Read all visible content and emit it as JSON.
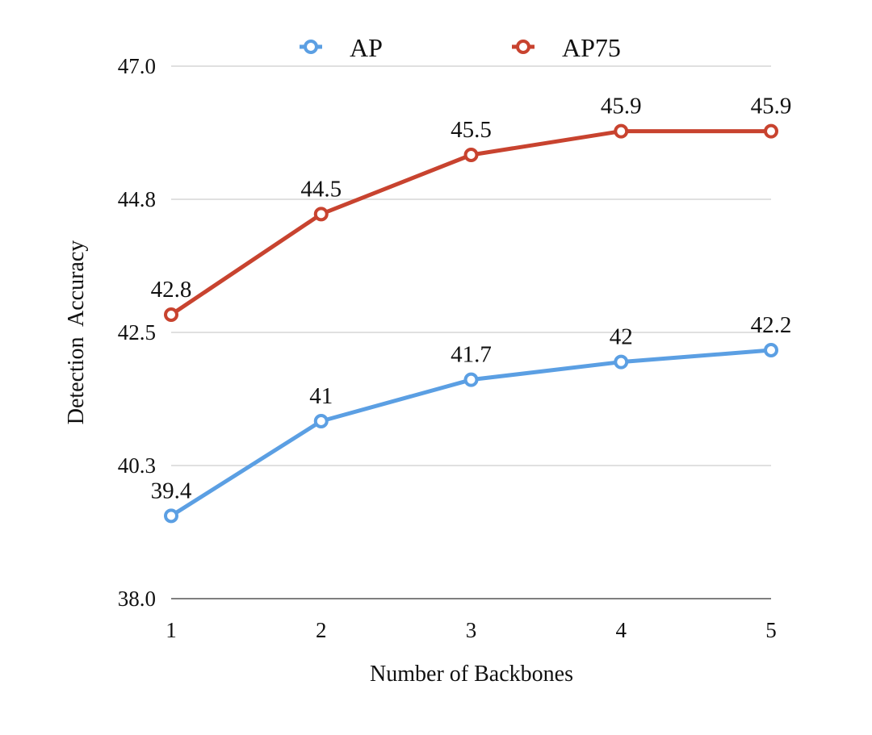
{
  "chart_data": {
    "type": "line",
    "title": "",
    "xlabel": "Number of Backbones",
    "ylabel": "Detection  Accuracy",
    "categories": [
      "1",
      "2",
      "3",
      "4",
      "5"
    ],
    "x": [
      1,
      2,
      3,
      4,
      5
    ],
    "ylim": [
      38.0,
      47.0
    ],
    "yticks": [
      38.0,
      40.25,
      42.5,
      44.75,
      47.0
    ],
    "ytick_labels": [
      "38.0",
      "40.3",
      "42.5",
      "44.8",
      "47.0"
    ],
    "grid": true,
    "legend_position": "top",
    "series": [
      {
        "name": "AP",
        "color": "#5b9fe3",
        "values": [
          39.4,
          41,
          41.7,
          42,
          42.2
        ],
        "labels": [
          "39.4",
          "41",
          "41.7",
          "42",
          "42.2"
        ]
      },
      {
        "name": "AP75",
        "color": "#c8432f",
        "values": [
          42.8,
          44.5,
          45.5,
          45.9,
          45.9
        ],
        "labels": [
          "42.8",
          "44.5",
          "45.5",
          "45.9",
          "45.9"
        ]
      }
    ]
  }
}
